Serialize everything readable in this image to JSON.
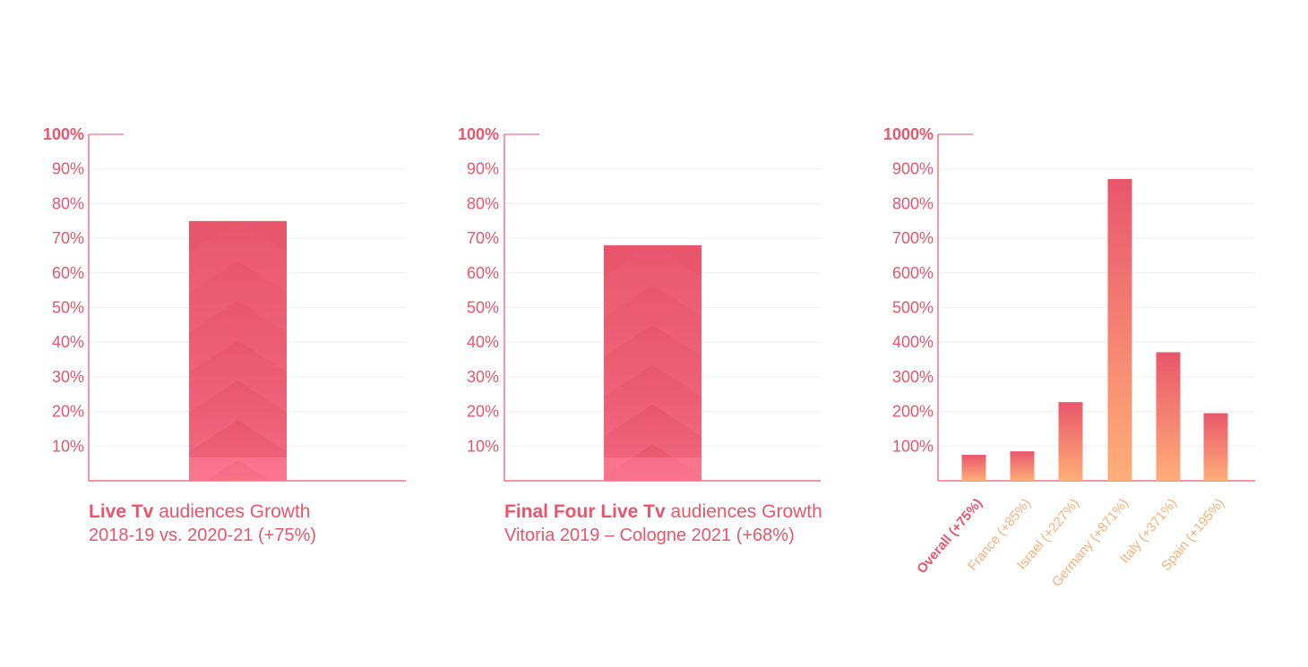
{
  "colors": {
    "accent": "#e8566c",
    "bar_top": "#e8566c",
    "bar_light": "#ff8099",
    "gradient_bottom": "#ffae78",
    "orange_label": "#f8b07a",
    "grid": "#f0eef0"
  },
  "captions": {
    "c1": {
      "highlight": "Live Tv",
      "rest": " audiences Growth",
      "sub": "2018-19 vs. 2020-21 (+75%)"
    },
    "c2": {
      "highlight": "Final Four Live Tv",
      "rest": " audiences Growth",
      "sub": "Vitoria 2019 – Cologne 2021 (+68%)"
    }
  },
  "chart_data": [
    {
      "type": "bar",
      "title": "Live Tv audiences Growth",
      "subtitle": "2018-19 vs. 2020-21 (+75%)",
      "ylim": [
        0,
        100
      ],
      "y_ticks": [
        "10%",
        "20%",
        "30%",
        "40%",
        "50%",
        "60%",
        "70%",
        "80%",
        "90%",
        "100%"
      ],
      "values": [
        75
      ],
      "grid": true
    },
    {
      "type": "bar",
      "title": "Final Four Live Tv audiences Growth",
      "subtitle": "Vitoria 2019 – Cologne 2021 (+68%)",
      "ylim": [
        0,
        100
      ],
      "y_ticks": [
        "10%",
        "20%",
        "30%",
        "40%",
        "50%",
        "60%",
        "70%",
        "80%",
        "90%",
        "100%"
      ],
      "values": [
        68
      ],
      "grid": true
    },
    {
      "type": "bar",
      "ylim": [
        0,
        1000
      ],
      "y_ticks": [
        "100%",
        "200%",
        "300%",
        "400%",
        "500%",
        "600%",
        "700%",
        "800%",
        "900%",
        "1000%"
      ],
      "categories": [
        "Overall (+75%)",
        "France (+85%)",
        "Israel (+227%)",
        "Germany (+871%)",
        "Italy (+371%)",
        "Spain (+195%)"
      ],
      "values": [
        75,
        85,
        227,
        871,
        371,
        195
      ],
      "grid": true
    }
  ]
}
